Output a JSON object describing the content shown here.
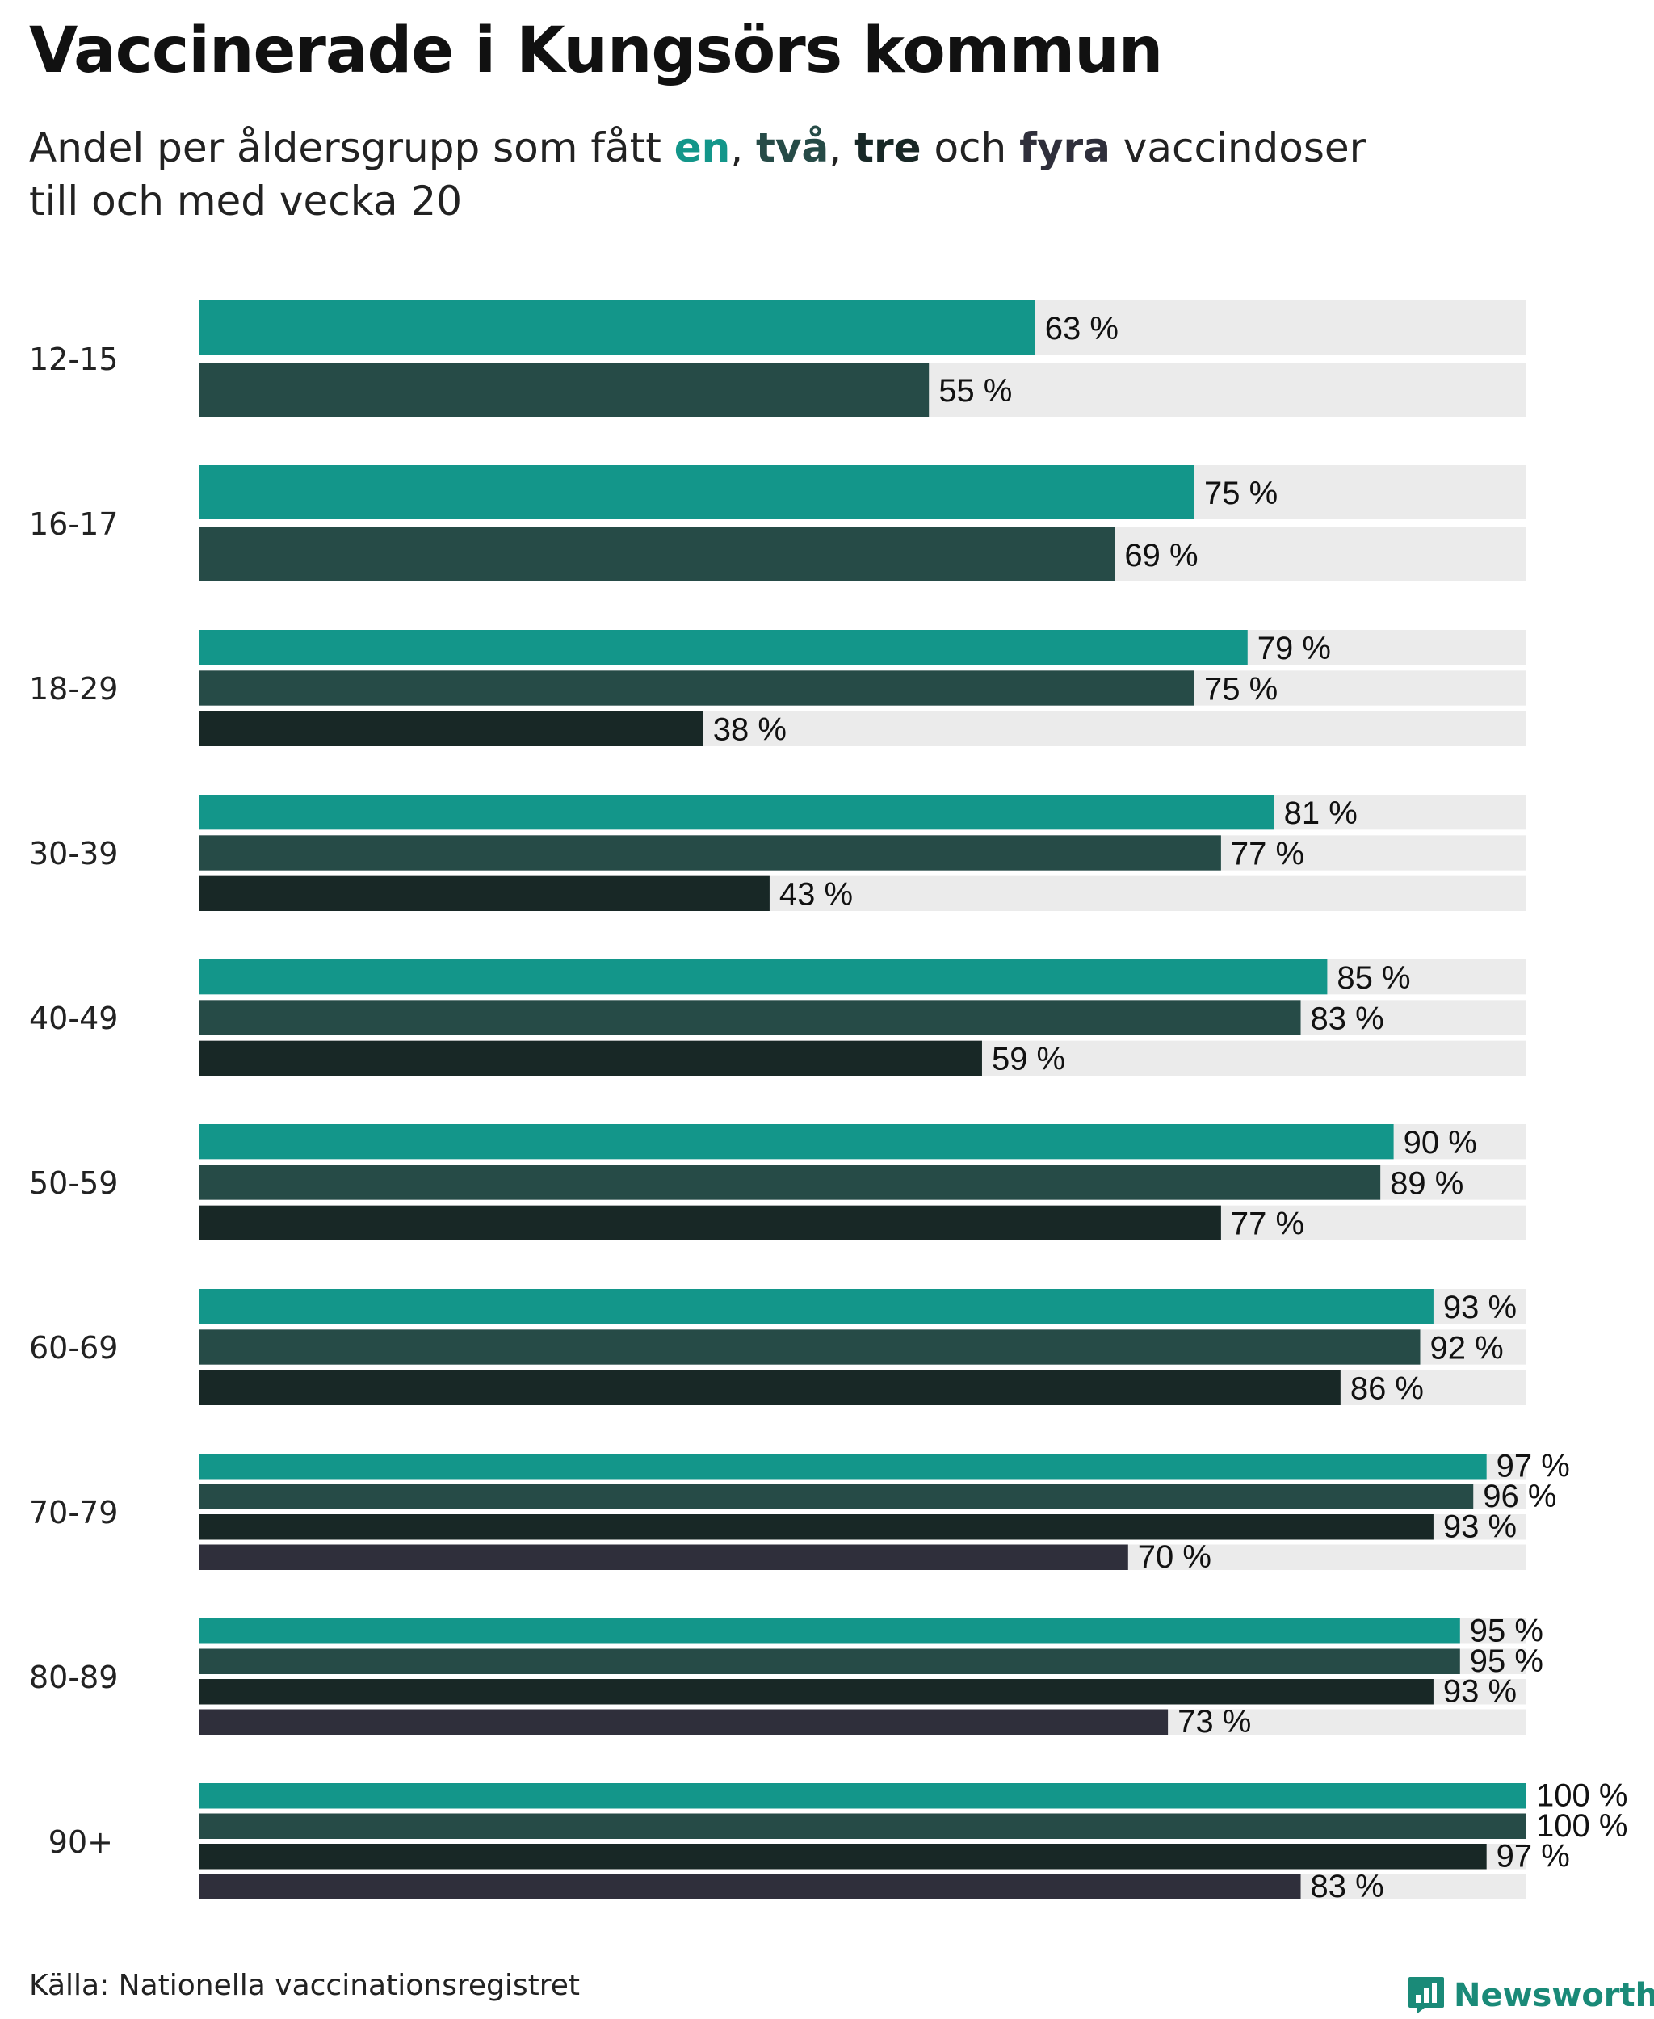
{
  "title": "Vaccinerade i Kungsörs kommun",
  "subtitle": {
    "prefix": "Andel per åldersgrupp som fått ",
    "dose1": "en",
    "sep1": ", ",
    "dose2": "två",
    "sep2": ", ",
    "dose3": "tre",
    "sep3": " och ",
    "dose4": "fyra",
    "suffix": " vaccindoser",
    "line2": "till och med vecka 20"
  },
  "colors": {
    "dose1": "#13968a",
    "dose2": "#264b47",
    "dose3": "#182826",
    "dose4": "#2f2f3b",
    "track": "#ebebeb"
  },
  "source": "Källa: Nationella vaccinationsregistret",
  "brand": {
    "name": "Newsworthy",
    "icon": "bar-chart-badge-icon"
  },
  "chart_data": {
    "type": "bar",
    "orientation": "horizontal",
    "unit": "%",
    "xlim": [
      0,
      100
    ],
    "grid": false,
    "categories": [
      "12-15",
      "16-17",
      "18-29",
      "30-39",
      "40-49",
      "50-59",
      "60-69",
      "70-79",
      "80-89",
      "90+"
    ],
    "series": [
      {
        "name": "en",
        "color": "#13968a",
        "values": [
          63,
          75,
          79,
          81,
          85,
          90,
          93,
          97,
          95,
          100
        ]
      },
      {
        "name": "två",
        "color": "#264b47",
        "values": [
          55,
          69,
          75,
          77,
          83,
          89,
          92,
          96,
          95,
          100
        ]
      },
      {
        "name": "tre",
        "color": "#182826",
        "values": [
          null,
          null,
          38,
          43,
          59,
          77,
          86,
          93,
          93,
          97
        ]
      },
      {
        "name": "fyra",
        "color": "#2f2f3b",
        "values": [
          null,
          null,
          null,
          null,
          null,
          null,
          null,
          70,
          73,
          83
        ]
      }
    ]
  }
}
